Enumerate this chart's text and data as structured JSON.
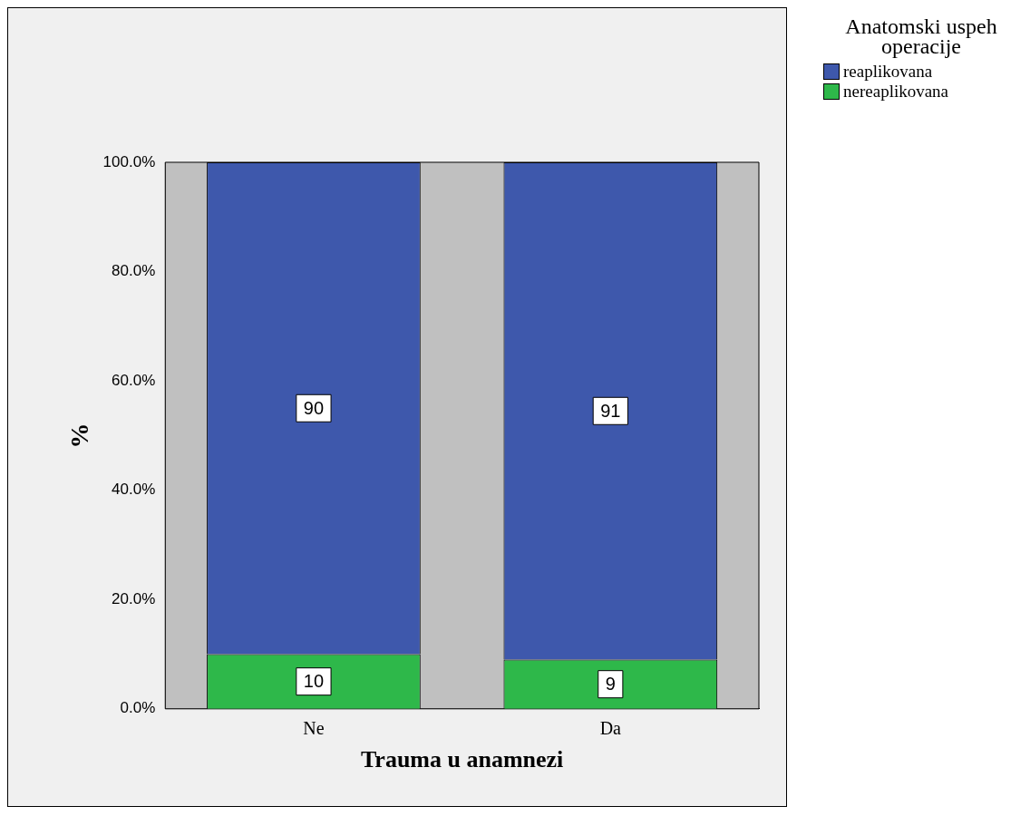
{
  "chart_data": {
    "type": "bar",
    "stacked": true,
    "xlabel": "Trauma u anamnezi",
    "ylabel": "%",
    "legend_title": "Anatomski uspeh operacije",
    "categories": [
      "Ne",
      "Da"
    ],
    "series": [
      {
        "name": "nereaplikovana",
        "color": "#2eb84a",
        "values": [
          10,
          9
        ]
      },
      {
        "name": "reaplikovana",
        "color": "#3e58ac",
        "values": [
          90,
          91
        ]
      }
    ],
    "ylim": [
      0,
      100
    ],
    "yticks": [
      {
        "value": 0,
        "label": "0.0%"
      },
      {
        "value": 20,
        "label": "20.0%"
      },
      {
        "value": 40,
        "label": "40.0%"
      },
      {
        "value": 60,
        "label": "60.0%"
      },
      {
        "value": 80,
        "label": "80.0%"
      },
      {
        "value": 100,
        "label": "100.0%"
      }
    ],
    "grid": false,
    "legend": "top right",
    "data_labels": true
  }
}
